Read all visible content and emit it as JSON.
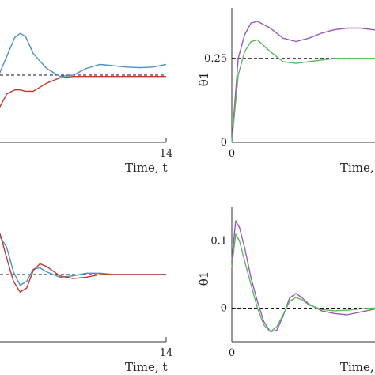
{
  "chart_data": [
    {
      "type": "line",
      "panel": "top-left",
      "title": "",
      "xlabel": "Time, t",
      "ylabel": "",
      "xlim": [
        0,
        14
      ],
      "ylim": [
        0,
        1
      ],
      "xticks": [
        {
          "value": 14,
          "label": "14"
        }
      ],
      "yticks": [],
      "reference_line": {
        "y": 0.5,
        "style": "dashed"
      },
      "series": [
        {
          "color": "#4a90c4",
          "x": [
            0,
            0.7,
            1.4,
            2.0,
            2.6,
            3.0,
            3.4,
            4.0,
            5.0,
            6.0,
            7.0,
            8.0,
            9.0,
            10.0,
            11.0,
            12.0,
            13.0,
            14.0
          ],
          "y": [
            0.36,
            0.4,
            0.5,
            0.64,
            0.78,
            0.81,
            0.79,
            0.66,
            0.55,
            0.49,
            0.5,
            0.55,
            0.58,
            0.57,
            0.56,
            0.555,
            0.56,
            0.58
          ]
        },
        {
          "color": "#c0392b",
          "x": [
            0,
            0.7,
            1.4,
            2.0,
            2.6,
            3.0,
            3.4,
            4.0,
            5.0,
            6.0,
            7.0,
            8.0,
            9.0,
            10.0,
            11.0,
            12.0,
            13.0,
            14.0
          ],
          "y": [
            0.0,
            0.1,
            0.25,
            0.36,
            0.39,
            0.39,
            0.38,
            0.38,
            0.44,
            0.48,
            0.49,
            0.49,
            0.49,
            0.49,
            0.49,
            0.49,
            0.49,
            0.49
          ]
        }
      ]
    },
    {
      "type": "line",
      "panel": "top-right",
      "title": "",
      "xlabel": "Time, t",
      "ylabel": "θ1",
      "xlim": [
        0,
        14
      ],
      "ylim": [
        0,
        0.4
      ],
      "xticks": [
        {
          "value": 0,
          "label": "0"
        }
      ],
      "yticks": [
        {
          "value": 0,
          "label": "0"
        },
        {
          "value": 0.25,
          "label": "0.25"
        }
      ],
      "reference_line": {
        "y": 0.25,
        "style": "dashed"
      },
      "series": [
        {
          "color": "#9b59b6",
          "x": [
            0,
            0.5,
            1.0,
            1.5,
            2.0,
            3.0,
            4.0,
            5.0,
            6.0,
            7.0,
            8.0,
            9.0,
            10.0,
            11.0,
            12.0,
            13.0,
            14.0
          ],
          "y": [
            0.0,
            0.25,
            0.32,
            0.355,
            0.36,
            0.34,
            0.31,
            0.3,
            0.31,
            0.325,
            0.335,
            0.34,
            0.34,
            0.335,
            0.33,
            0.33,
            0.335
          ]
        },
        {
          "color": "#5cb85c",
          "x": [
            0,
            0.5,
            1.0,
            1.5,
            2.0,
            3.0,
            4.0,
            5.0,
            6.0,
            7.0,
            8.0,
            9.0,
            10.0,
            11.0,
            12.0,
            13.0,
            14.0
          ],
          "y": [
            0.0,
            0.2,
            0.27,
            0.3,
            0.305,
            0.27,
            0.24,
            0.235,
            0.24,
            0.245,
            0.25,
            0.25,
            0.25,
            0.25,
            0.25,
            0.25,
            0.25
          ]
        }
      ]
    },
    {
      "type": "line",
      "panel": "bottom-left",
      "title": "",
      "xlabel": "Time, t",
      "ylabel": "",
      "xlim": [
        0,
        14
      ],
      "ylim": [
        -0.5,
        0.5
      ],
      "xticks": [
        {
          "value": 14,
          "label": "14"
        }
      ],
      "yticks": [],
      "reference_line": {
        "y": 0.0,
        "style": "dashed"
      },
      "series": [
        {
          "color": "#4a90c4",
          "x": [
            0,
            0.5,
            1.0,
            1.5,
            2.0,
            2.5,
            3.0,
            3.5,
            4.0,
            4.5,
            5.0,
            6.0,
            7.0,
            8.0,
            9.0,
            10.0,
            11.0,
            12.0,
            13.0,
            14.0
          ],
          "y": [
            0.06,
            0.05,
            0.16,
            0.28,
            0.2,
            0.02,
            -0.08,
            -0.05,
            0.04,
            0.05,
            0.02,
            -0.02,
            -0.01,
            0.01,
            0.01,
            0.0,
            0.0,
            0.0,
            0.0,
            0.0
          ]
        },
        {
          "color": "#c0392b",
          "x": [
            0,
            0.5,
            1.0,
            1.5,
            2.0,
            2.5,
            3.0,
            3.5,
            4.0,
            4.5,
            5.0,
            6.0,
            7.0,
            8.0,
            9.0,
            10.0,
            11.0,
            12.0,
            13.0,
            14.0
          ],
          "y": [
            0.25,
            0.32,
            0.36,
            0.3,
            0.12,
            -0.05,
            -0.13,
            -0.1,
            0.03,
            0.08,
            0.06,
            -0.01,
            -0.03,
            -0.02,
            0.0,
            0.0,
            0.0,
            0.0,
            0.0,
            0.0
          ]
        }
      ]
    },
    {
      "type": "line",
      "panel": "bottom-right",
      "title": "",
      "xlabel": "Time, t",
      "ylabel": "θ̇1",
      "xlim": [
        0,
        14
      ],
      "ylim": [
        -0.05,
        0.15
      ],
      "xticks": [
        {
          "value": 0,
          "label": "0"
        }
      ],
      "yticks": [
        {
          "value": 0,
          "label": "0"
        },
        {
          "value": 0.1,
          "label": "0.1"
        }
      ],
      "reference_line": {
        "y": 0.0,
        "style": "dashed"
      },
      "series": [
        {
          "color": "#9b59b6",
          "x": [
            0,
            0.3,
            0.6,
            1.0,
            1.5,
            2.0,
            2.5,
            3.0,
            3.5,
            4.0,
            4.5,
            5.0,
            5.5,
            6.0,
            7.0,
            8.0,
            9.0,
            10.0,
            11.0,
            12.0,
            13.0,
            14.0
          ],
          "y": [
            0.07,
            0.13,
            0.12,
            0.09,
            0.045,
            0.01,
            -0.02,
            -0.035,
            -0.033,
            -0.012,
            0.015,
            0.022,
            0.015,
            0.006,
            -0.004,
            -0.008,
            -0.01,
            -0.006,
            -0.002,
            0.003,
            0.005,
            0.004
          ]
        },
        {
          "color": "#5cb85c",
          "x": [
            0,
            0.3,
            0.6,
            1.0,
            1.5,
            2.0,
            2.5,
            3.0,
            3.5,
            4.0,
            4.5,
            5.0,
            5.5,
            6.0,
            7.0,
            8.0,
            9.0,
            10.0,
            11.0,
            12.0,
            13.0,
            14.0
          ],
          "y": [
            0.06,
            0.11,
            0.1,
            0.07,
            0.035,
            0.0,
            -0.025,
            -0.035,
            -0.028,
            -0.01,
            0.01,
            0.016,
            0.012,
            0.005,
            -0.002,
            -0.004,
            -0.003,
            -0.001,
            0.0,
            0.001,
            0.001,
            0.0
          ]
        }
      ]
    }
  ]
}
